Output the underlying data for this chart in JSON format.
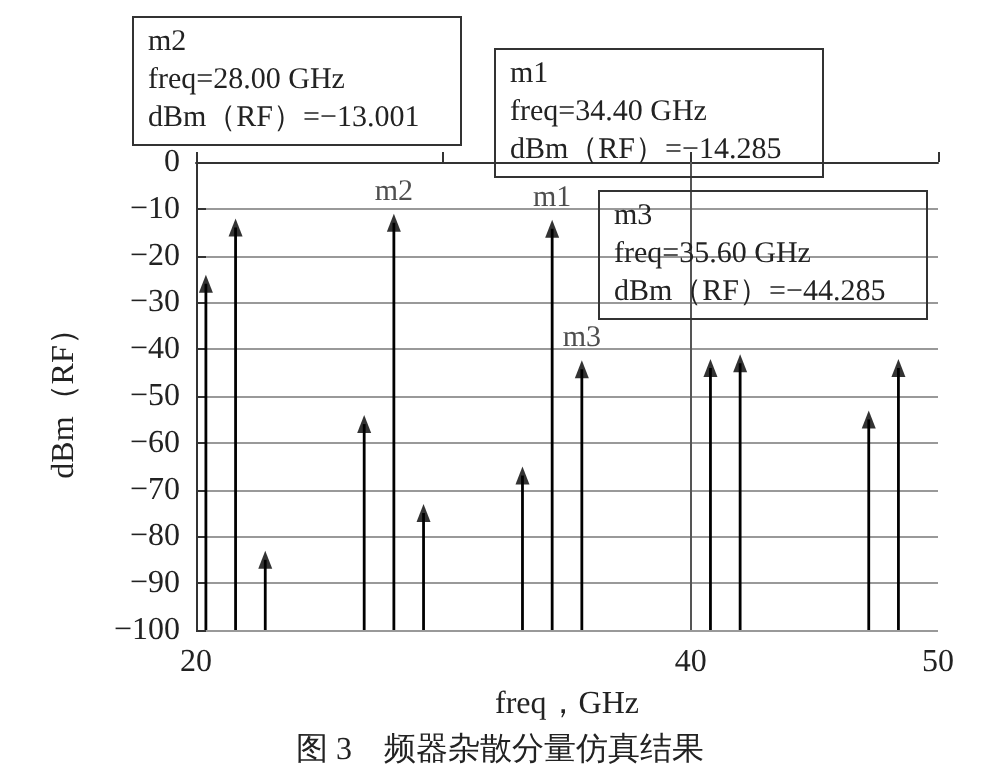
{
  "chart_data": {
    "type": "bar",
    "title": "图 3　频器杂散分量仿真结果",
    "xlabel": "freq，GHz",
    "ylabel": "dBm（RF）",
    "x": [
      20.4,
      21.6,
      22.8,
      26.8,
      28.0,
      29.2,
      33.2,
      34.4,
      35.6,
      40.8,
      42.0,
      47.2,
      48.4
    ],
    "series": [
      {
        "color": "#000000",
        "base": [
          -100,
          -100,
          -100,
          -100,
          -100,
          -100,
          -100,
          -100,
          -100,
          -100,
          -100,
          -100,
          -100
        ],
        "values": [
          74,
          86,
          15,
          44,
          86.999,
          25,
          33,
          85.715,
          55.715,
          56,
          57,
          45,
          56
        ]
      },
      {
        "type": "scatter",
        "color": "#000000",
        "marker": "triangle",
        "values": [
          -26,
          -14,
          -85,
          -56,
          -13.001,
          -75,
          -67,
          -14.285,
          -44.285,
          -44,
          -43,
          -55,
          -44
        ]
      }
    ],
    "xlim": [
      20,
      50
    ],
    "xticks": [
      20,
      {
        "value": 30,
        "label": null
      },
      40,
      50
    ],
    "ylim": [
      -100,
      0
    ],
    "yticks": [
      -100,
      -90,
      -80,
      -70,
      -60,
      -50,
      -40,
      -30,
      -20,
      -10,
      0
    ],
    "grid": "y",
    "ref_lines": [
      {
        "axis": "x",
        "value": 40,
        "color": "#555555"
      }
    ],
    "annotations": [
      {
        "text": "m2",
        "x": 28.0,
        "y": -13.001
      },
      {
        "text": "m1",
        "x": 34.4,
        "y": -14.285
      },
      {
        "text": "m3",
        "x": 35.6,
        "y": -44.285
      },
      "m2\nfreq=28.00 GHz\ndBm（RF）=−13.001",
      "m1\nfreq=34.40 GHz\ndBm（RF）=−14.285",
      "m3\nfreq=35.60 GHz\ndBm（RF）=−44.285"
    ]
  }
}
